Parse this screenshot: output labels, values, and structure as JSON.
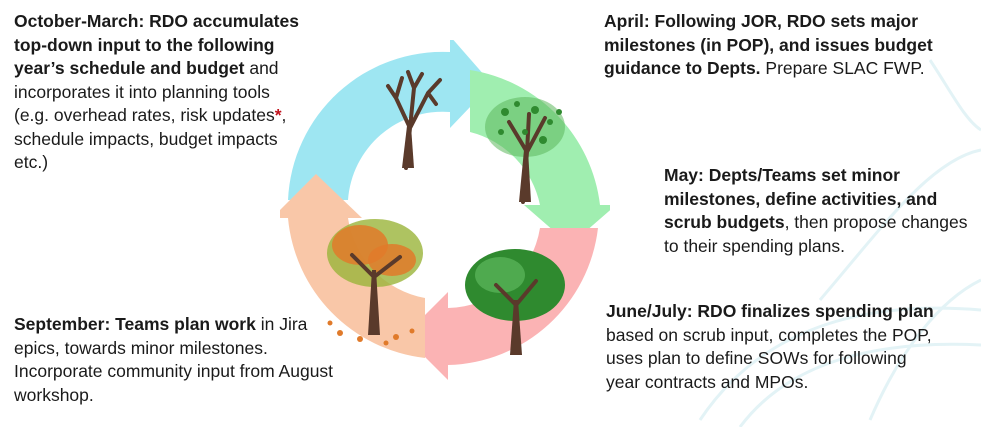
{
  "colors": {
    "arrow_blue": "#9ee6f2",
    "arrow_green": "#a0eeb0",
    "arrow_pink": "#fbb3b4",
    "arrow_peach": "#f9c7a8",
    "trunk": "#5a3a2b",
    "leaf_light_green": "#5cb85c",
    "leaf_dark_green": "#2f8a2f",
    "leaf_autumn_orange": "#e07a2a",
    "leaf_autumn_green": "#9ab43a",
    "star_red": "#c0121c"
  },
  "trees": [
    {
      "name": "bare-tree-icon",
      "season": "winter"
    },
    {
      "name": "budding-tree-icon",
      "season": "spring"
    },
    {
      "name": "full-tree-icon",
      "season": "summer"
    },
    {
      "name": "autumn-tree-icon",
      "season": "autumn"
    }
  ],
  "blocks": {
    "oct": {
      "bold1": "October-March: RDO accumulates top-down input to the following year’s schedule and budget",
      "text1": " and incorporates it into planning tools (e.g. overhead rates, risk updates",
      "star": "*",
      "text2": ", schedule impacts, budget impacts etc.)"
    },
    "apr": {
      "bold1": "April: Following JOR, RDO sets major  milestones (in POP), and issues budget guidance to Depts.",
      "text1": " Prepare SLAC FWP."
    },
    "may": {
      "bold1": "May: Depts/Teams set minor milestones, define activities, and scrub budgets",
      "text1": ", then propose changes to their spending plans."
    },
    "jun": {
      "bold1": "June/July: RDO finalizes spending plan",
      "text1": " based on scrub input, completes the POP, uses plan to define SOWs for following year contracts and MPOs."
    },
    "sep": {
      "bold1": "September: Teams plan work",
      "text1": " in Jira epics, towards minor milestones. Incorporate community input from August workshop."
    }
  }
}
